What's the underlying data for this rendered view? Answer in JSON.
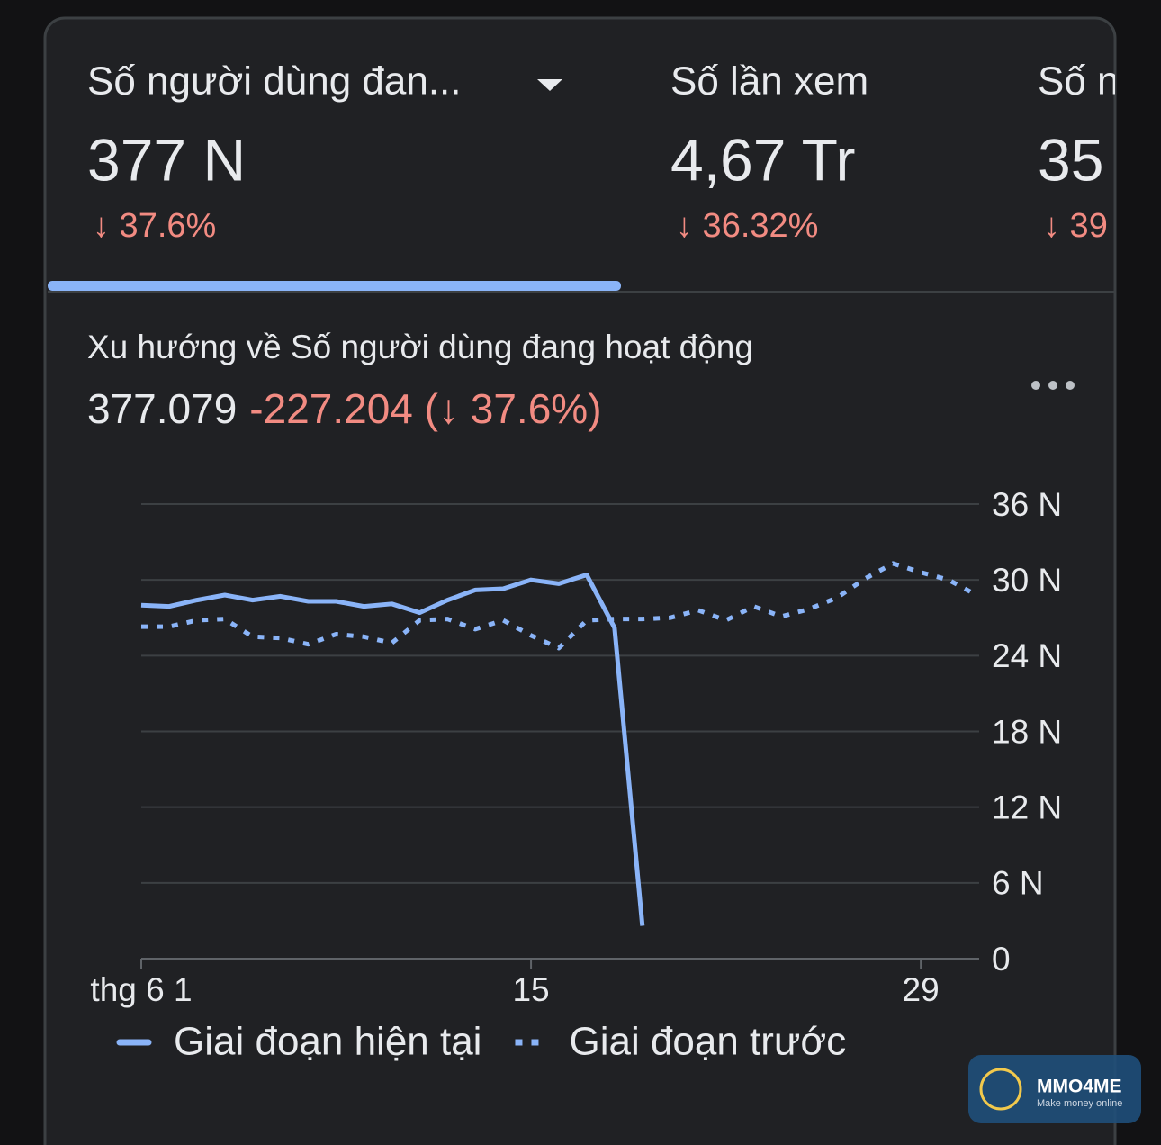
{
  "tabs": [
    {
      "label": "Số người dùng đan...",
      "value": "377 N",
      "change": "↓ 37.6%"
    },
    {
      "label": "Số lần xem",
      "value": "4,67 Tr",
      "change": "↓ 36.32%"
    },
    {
      "label": "Số n",
      "value": "35",
      "change": "↓ 39"
    }
  ],
  "chart_data": {
    "type": "line",
    "title": "Xu hướng về Số người dùng đang hoạt động",
    "value": "377.079",
    "delta": "-227.204 (↓ 37.6%)",
    "x": [
      1,
      2,
      3,
      4,
      5,
      6,
      7,
      8,
      9,
      10,
      11,
      12,
      13,
      14,
      15,
      16,
      17,
      18,
      19,
      20,
      21,
      22,
      23,
      24,
      25,
      26,
      27,
      28,
      29,
      30,
      31
    ],
    "xlim": [
      1,
      31
    ],
    "xticks": [
      {
        "value": 1,
        "label": "thg 6 1"
      },
      15,
      29
    ],
    "ylim": [
      0,
      36
    ],
    "yticks": [
      0,
      {
        "value": 6,
        "label": "6 N"
      },
      {
        "value": 12,
        "label": "12 N"
      },
      {
        "value": 18,
        "label": "18 N"
      },
      {
        "value": 24,
        "label": "24 N"
      },
      {
        "value": 30,
        "label": "30 N"
      },
      {
        "value": 36,
        "label": "36 N"
      }
    ],
    "grid": true,
    "series": [
      {
        "name": "Giai đoạn hiện tại",
        "color": "#8ab4f8",
        "style": "solid",
        "values": [
          28.0,
          27.9,
          28.4,
          28.8,
          28.4,
          28.7,
          28.3,
          28.3,
          27.9,
          28.1,
          27.4,
          28.4,
          29.2,
          29.3,
          30.0,
          29.7,
          30.4,
          26.2,
          2.6,
          null,
          null,
          null,
          null,
          null,
          null,
          null,
          null,
          null,
          null,
          null,
          null
        ]
      },
      {
        "name": "Giai đoạn trước",
        "color": "#8ab4f8",
        "style": "dotted",
        "values": [
          26.3,
          26.3,
          26.8,
          26.9,
          25.5,
          25.4,
          24.9,
          25.7,
          25.5,
          25.0,
          26.8,
          26.9,
          26.1,
          26.8,
          25.6,
          24.6,
          26.8,
          26.9,
          26.9,
          27.0,
          27.6,
          26.8,
          27.9,
          27.1,
          27.7,
          28.6,
          30.1,
          31.3,
          30.6,
          30.0,
          28.8
        ]
      }
    ]
  },
  "watermark": {
    "name": "MMO4ME",
    "tagline": "Make money online"
  }
}
